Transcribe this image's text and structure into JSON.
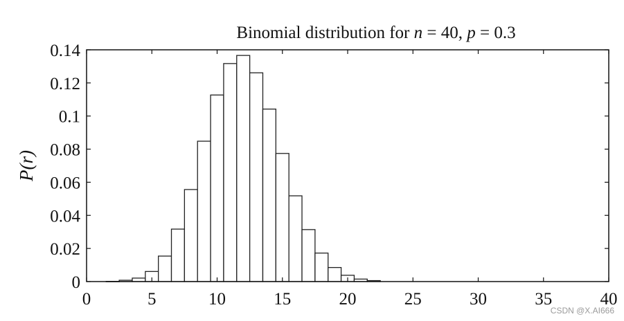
{
  "chart_data": {
    "type": "bar",
    "title_parts": {
      "prefix": "Binomial distribution for ",
      "n_symbol": "n",
      "n_value": " = 40, ",
      "p_symbol": "p",
      "p_value": " = 0.3"
    },
    "xlabel": "",
    "ylabel": "P(r)",
    "xlim": [
      0,
      40
    ],
    "ylim": [
      0,
      0.14
    ],
    "xticks": [
      0,
      5,
      10,
      15,
      20,
      25,
      30,
      35,
      40
    ],
    "xtick_labels": [
      "0",
      "5",
      "10",
      "15",
      "20",
      "25",
      "30",
      "35",
      "40"
    ],
    "yticks": [
      0,
      0.02,
      0.04,
      0.06,
      0.08,
      0.1,
      0.12,
      0.14
    ],
    "ytick_labels": [
      "0",
      "0.02",
      "0.04",
      "0.06",
      "0.08",
      "0.1",
      "0.12",
      "0.14"
    ],
    "x": [
      2,
      3,
      4,
      5,
      6,
      7,
      8,
      9,
      10,
      11,
      12,
      13,
      14,
      15,
      16,
      17,
      18,
      19,
      20,
      21,
      22
    ],
    "values": [
      0.0001,
      0.0008,
      0.0021,
      0.0061,
      0.0154,
      0.0317,
      0.0556,
      0.0848,
      0.1127,
      0.1317,
      0.1366,
      0.1261,
      0.1042,
      0.0774,
      0.0518,
      0.0314,
      0.0172,
      0.0085,
      0.0038,
      0.0015,
      0.0006
    ],
    "bar_fill": "#ffffff",
    "bar_stroke": "#222222",
    "grid": false,
    "legend": "none"
  },
  "watermark": "CSDN @X.AI666"
}
